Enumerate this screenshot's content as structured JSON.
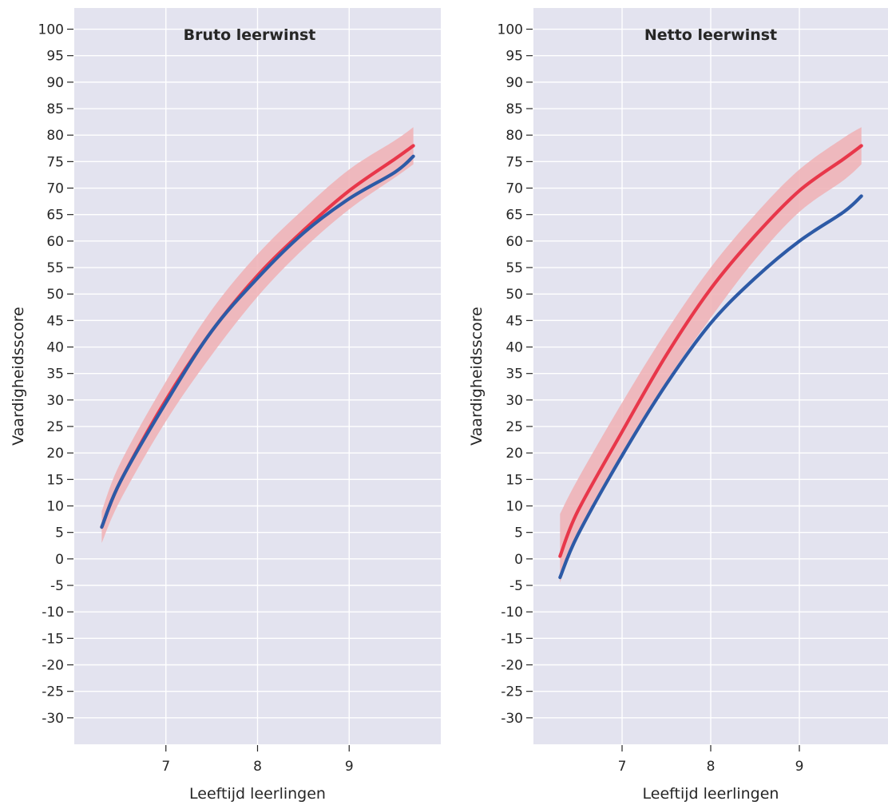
{
  "chart_data": [
    {
      "type": "line",
      "title": "Bruto leerwinst",
      "xlabel": "Leeftijd leerlingen",
      "ylabel": "Vaardigheidsscore",
      "xlim": [
        6.0,
        10.0
      ],
      "ylim": [
        -35,
        104
      ],
      "xticks": [
        7,
        8,
        9
      ],
      "yticks": [
        100,
        95,
        90,
        85,
        80,
        75,
        70,
        65,
        60,
        55,
        50,
        45,
        40,
        35,
        30,
        25,
        20,
        15,
        10,
        5,
        0,
        -5,
        -10,
        -15,
        -20,
        -25,
        -30
      ],
      "grid": true,
      "x": [
        6.3,
        6.5,
        7.0,
        7.5,
        8.0,
        8.5,
        9.0,
        9.5,
        9.7
      ],
      "series": [
        {
          "color": "#e8374a",
          "values": [
            6,
            14.5,
            30,
            43,
            53.5,
            62,
            69.5,
            75.5,
            78
          ],
          "band_lower": [
            3,
            11,
            26,
            38.5,
            49.5,
            58.5,
            66,
            72,
            74.5
          ],
          "band_upper": [
            9,
            18,
            33.5,
            47,
            57.5,
            66,
            73.5,
            79,
            81.5
          ],
          "band_color": "#f0b0b4"
        },
        {
          "color": "#2d5aa6",
          "values": [
            6,
            14.5,
            29.5,
            43,
            53,
            61.5,
            68,
            73,
            76
          ]
        }
      ]
    },
    {
      "type": "line",
      "title": "Netto leerwinst",
      "xlabel": "Leeftijd leerlingen",
      "ylabel": "Vaardigheidsscore",
      "xlim": [
        6.0,
        10.0
      ],
      "ylim": [
        -35,
        104
      ],
      "xticks": [
        7,
        8,
        9
      ],
      "yticks": [
        100,
        95,
        90,
        85,
        80,
        75,
        70,
        65,
        60,
        55,
        50,
        45,
        40,
        35,
        30,
        25,
        20,
        15,
        10,
        5,
        0,
        -5,
        -10,
        -15,
        -20,
        -25,
        -30
      ],
      "grid": true,
      "x": [
        6.3,
        6.5,
        7.0,
        7.5,
        8.0,
        8.5,
        9.0,
        9.5,
        9.7
      ],
      "series": [
        {
          "color": "#e8374a",
          "values": [
            0.5,
            9,
            24,
            38.5,
            51,
            61,
            69.5,
            75.5,
            78
          ],
          "band_lower": [
            -4.5,
            4.5,
            19.5,
            33.5,
            45.5,
            56.5,
            65.5,
            71.5,
            74.5
          ],
          "band_upper": [
            8.5,
            15,
            29.5,
            43,
            55,
            65,
            73.5,
            79.5,
            81.5
          ],
          "band_color": "#f0b0b4"
        },
        {
          "color": "#2d5aa6",
          "values": [
            -3.5,
            4.5,
            19.5,
            33,
            44.5,
            53,
            60,
            65.5,
            68.5
          ]
        }
      ]
    }
  ]
}
